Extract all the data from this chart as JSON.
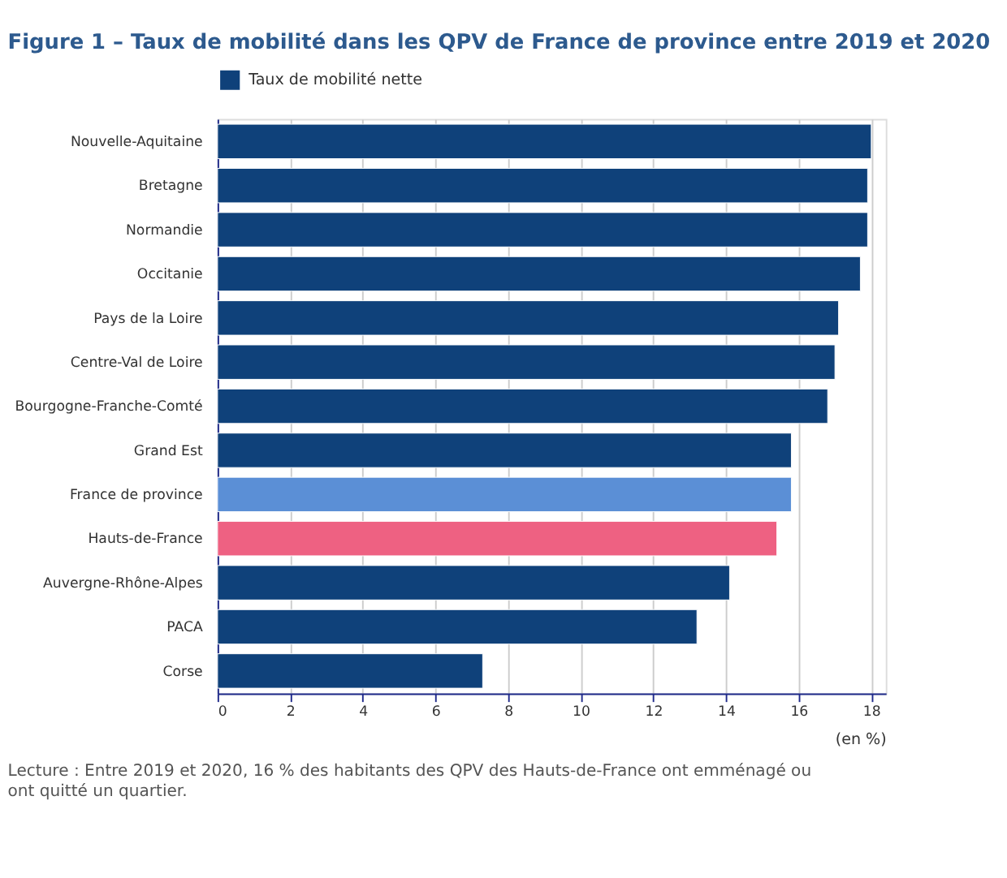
{
  "chart_data": {
    "type": "bar",
    "orientation": "horizontal",
    "title": "Figure 1 – Taux de mobilité dans les QPV de France de province entre 2019 et 2020",
    "xlabel": "(en %)",
    "categories": [
      "Nouvelle-Aquitaine",
      "Bretagne",
      "Normandie",
      "Occitanie",
      "Pays de la Loire",
      "Centre-Val de Loire",
      "Bourgogne-Franche-Comté",
      "Grand Est",
      "France de province",
      "Hauts-de-France",
      "Auvergne-Rhône-Alpes",
      "PACA",
      "Corse"
    ],
    "series": [
      {
        "name": "Taux de mobilité nette",
        "color": "#0f417a",
        "values": [
          18.0,
          17.9,
          17.9,
          17.7,
          17.1,
          17.0,
          16.8,
          15.8,
          15.8,
          15.4,
          14.1,
          13.2,
          7.3
        ],
        "colors": [
          "#0f417a",
          "#0f417a",
          "#0f417a",
          "#0f417a",
          "#0f417a",
          "#0f417a",
          "#0f417a",
          "#0f417a",
          "#5b8fd6",
          "#ee6182",
          "#0f417a",
          "#0f417a",
          "#0f417a"
        ]
      }
    ],
    "xlim": [
      0,
      18.4
    ],
    "xticks": [
      0,
      2,
      4,
      6,
      8,
      10,
      12,
      14,
      16,
      18
    ],
    "grid": "x",
    "legend": "top left",
    "annotations": [
      "Lecture : Entre 2019 et 2020, 16 % des habitants des QPV des Hauts-de-France ont emménagé ou ont quitté un quartier."
    ]
  }
}
